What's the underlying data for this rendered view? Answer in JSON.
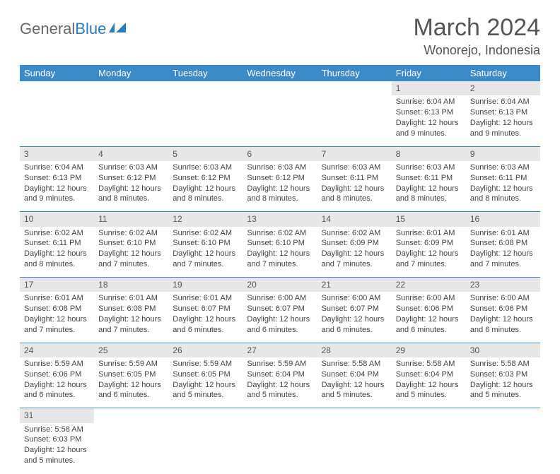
{
  "logo": {
    "part1": "General",
    "part2": "Blue"
  },
  "header": {
    "title": "March 2024",
    "location": "Wonorejo, Indonesia"
  },
  "colors": {
    "header_bg": "#3b8bc9",
    "daynum_bg": "#e7e7e7",
    "text": "#444444",
    "title_text": "#555555"
  },
  "days_of_week": [
    "Sunday",
    "Monday",
    "Tuesday",
    "Wednesday",
    "Thursday",
    "Friday",
    "Saturday"
  ],
  "weeks": [
    {
      "nums": [
        "",
        "",
        "",
        "",
        "",
        "1",
        "2"
      ],
      "cells": [
        null,
        null,
        null,
        null,
        null,
        {
          "sunrise": "Sunrise: 6:04 AM",
          "sunset": "Sunset: 6:13 PM",
          "daylight1": "Daylight: 12 hours",
          "daylight2": "and 9 minutes."
        },
        {
          "sunrise": "Sunrise: 6:04 AM",
          "sunset": "Sunset: 6:13 PM",
          "daylight1": "Daylight: 12 hours",
          "daylight2": "and 9 minutes."
        }
      ]
    },
    {
      "nums": [
        "3",
        "4",
        "5",
        "6",
        "7",
        "8",
        "9"
      ],
      "cells": [
        {
          "sunrise": "Sunrise: 6:04 AM",
          "sunset": "Sunset: 6:13 PM",
          "daylight1": "Daylight: 12 hours",
          "daylight2": "and 9 minutes."
        },
        {
          "sunrise": "Sunrise: 6:03 AM",
          "sunset": "Sunset: 6:12 PM",
          "daylight1": "Daylight: 12 hours",
          "daylight2": "and 8 minutes."
        },
        {
          "sunrise": "Sunrise: 6:03 AM",
          "sunset": "Sunset: 6:12 PM",
          "daylight1": "Daylight: 12 hours",
          "daylight2": "and 8 minutes."
        },
        {
          "sunrise": "Sunrise: 6:03 AM",
          "sunset": "Sunset: 6:12 PM",
          "daylight1": "Daylight: 12 hours",
          "daylight2": "and 8 minutes."
        },
        {
          "sunrise": "Sunrise: 6:03 AM",
          "sunset": "Sunset: 6:11 PM",
          "daylight1": "Daylight: 12 hours",
          "daylight2": "and 8 minutes."
        },
        {
          "sunrise": "Sunrise: 6:03 AM",
          "sunset": "Sunset: 6:11 PM",
          "daylight1": "Daylight: 12 hours",
          "daylight2": "and 8 minutes."
        },
        {
          "sunrise": "Sunrise: 6:03 AM",
          "sunset": "Sunset: 6:11 PM",
          "daylight1": "Daylight: 12 hours",
          "daylight2": "and 8 minutes."
        }
      ]
    },
    {
      "nums": [
        "10",
        "11",
        "12",
        "13",
        "14",
        "15",
        "16"
      ],
      "cells": [
        {
          "sunrise": "Sunrise: 6:02 AM",
          "sunset": "Sunset: 6:11 PM",
          "daylight1": "Daylight: 12 hours",
          "daylight2": "and 8 minutes."
        },
        {
          "sunrise": "Sunrise: 6:02 AM",
          "sunset": "Sunset: 6:10 PM",
          "daylight1": "Daylight: 12 hours",
          "daylight2": "and 7 minutes."
        },
        {
          "sunrise": "Sunrise: 6:02 AM",
          "sunset": "Sunset: 6:10 PM",
          "daylight1": "Daylight: 12 hours",
          "daylight2": "and 7 minutes."
        },
        {
          "sunrise": "Sunrise: 6:02 AM",
          "sunset": "Sunset: 6:10 PM",
          "daylight1": "Daylight: 12 hours",
          "daylight2": "and 7 minutes."
        },
        {
          "sunrise": "Sunrise: 6:02 AM",
          "sunset": "Sunset: 6:09 PM",
          "daylight1": "Daylight: 12 hours",
          "daylight2": "and 7 minutes."
        },
        {
          "sunrise": "Sunrise: 6:01 AM",
          "sunset": "Sunset: 6:09 PM",
          "daylight1": "Daylight: 12 hours",
          "daylight2": "and 7 minutes."
        },
        {
          "sunrise": "Sunrise: 6:01 AM",
          "sunset": "Sunset: 6:08 PM",
          "daylight1": "Daylight: 12 hours",
          "daylight2": "and 7 minutes."
        }
      ]
    },
    {
      "nums": [
        "17",
        "18",
        "19",
        "20",
        "21",
        "22",
        "23"
      ],
      "cells": [
        {
          "sunrise": "Sunrise: 6:01 AM",
          "sunset": "Sunset: 6:08 PM",
          "daylight1": "Daylight: 12 hours",
          "daylight2": "and 7 minutes."
        },
        {
          "sunrise": "Sunrise: 6:01 AM",
          "sunset": "Sunset: 6:08 PM",
          "daylight1": "Daylight: 12 hours",
          "daylight2": "and 7 minutes."
        },
        {
          "sunrise": "Sunrise: 6:01 AM",
          "sunset": "Sunset: 6:07 PM",
          "daylight1": "Daylight: 12 hours",
          "daylight2": "and 6 minutes."
        },
        {
          "sunrise": "Sunrise: 6:00 AM",
          "sunset": "Sunset: 6:07 PM",
          "daylight1": "Daylight: 12 hours",
          "daylight2": "and 6 minutes."
        },
        {
          "sunrise": "Sunrise: 6:00 AM",
          "sunset": "Sunset: 6:07 PM",
          "daylight1": "Daylight: 12 hours",
          "daylight2": "and 6 minutes."
        },
        {
          "sunrise": "Sunrise: 6:00 AM",
          "sunset": "Sunset: 6:06 PM",
          "daylight1": "Daylight: 12 hours",
          "daylight2": "and 6 minutes."
        },
        {
          "sunrise": "Sunrise: 6:00 AM",
          "sunset": "Sunset: 6:06 PM",
          "daylight1": "Daylight: 12 hours",
          "daylight2": "and 6 minutes."
        }
      ]
    },
    {
      "nums": [
        "24",
        "25",
        "26",
        "27",
        "28",
        "29",
        "30"
      ],
      "cells": [
        {
          "sunrise": "Sunrise: 5:59 AM",
          "sunset": "Sunset: 6:06 PM",
          "daylight1": "Daylight: 12 hours",
          "daylight2": "and 6 minutes."
        },
        {
          "sunrise": "Sunrise: 5:59 AM",
          "sunset": "Sunset: 6:05 PM",
          "daylight1": "Daylight: 12 hours",
          "daylight2": "and 6 minutes."
        },
        {
          "sunrise": "Sunrise: 5:59 AM",
          "sunset": "Sunset: 6:05 PM",
          "daylight1": "Daylight: 12 hours",
          "daylight2": "and 5 minutes."
        },
        {
          "sunrise": "Sunrise: 5:59 AM",
          "sunset": "Sunset: 6:04 PM",
          "daylight1": "Daylight: 12 hours",
          "daylight2": "and 5 minutes."
        },
        {
          "sunrise": "Sunrise: 5:58 AM",
          "sunset": "Sunset: 6:04 PM",
          "daylight1": "Daylight: 12 hours",
          "daylight2": "and 5 minutes."
        },
        {
          "sunrise": "Sunrise: 5:58 AM",
          "sunset": "Sunset: 6:04 PM",
          "daylight1": "Daylight: 12 hours",
          "daylight2": "and 5 minutes."
        },
        {
          "sunrise": "Sunrise: 5:58 AM",
          "sunset": "Sunset: 6:03 PM",
          "daylight1": "Daylight: 12 hours",
          "daylight2": "and 5 minutes."
        }
      ]
    },
    {
      "nums": [
        "31",
        "",
        "",
        "",
        "",
        "",
        ""
      ],
      "cells": [
        {
          "sunrise": "Sunrise: 5:58 AM",
          "sunset": "Sunset: 6:03 PM",
          "daylight1": "Daylight: 12 hours",
          "daylight2": "and 5 minutes."
        },
        null,
        null,
        null,
        null,
        null,
        null
      ]
    }
  ]
}
